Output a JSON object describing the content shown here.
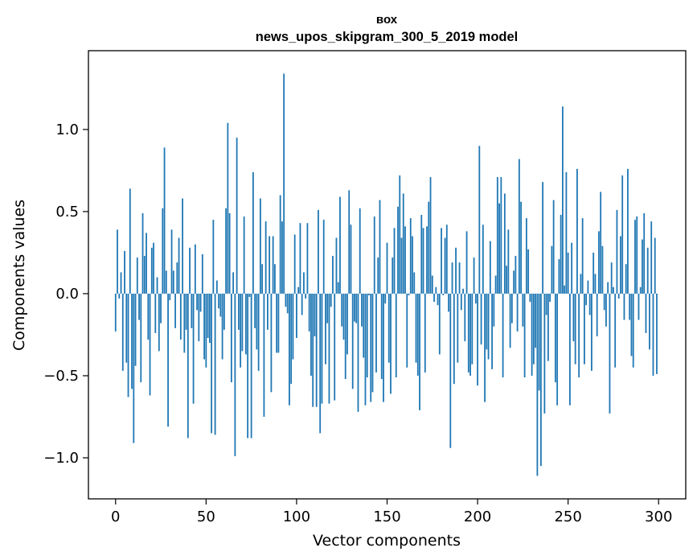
{
  "chart_data": {
    "type": "bar",
    "title_line1": "вох",
    "title_line2": "news_upos_skipgram_300_5_2019 model",
    "xlabel": "Vector components",
    "ylabel": "Components values",
    "xlim": [
      -15,
      315
    ],
    "ylim": [
      -1.25,
      1.48
    ],
    "xticks": [
      0,
      50,
      100,
      150,
      200,
      250,
      300
    ],
    "xtick_labels": [
      "0",
      "50",
      "100",
      "150",
      "200",
      "250",
      "300"
    ],
    "yticks": [
      -1.0,
      -0.5,
      0.0,
      0.5,
      1.0
    ],
    "ytick_labels": [
      "−1.0",
      "−0.5",
      "0.0",
      "0.5",
      "1.0"
    ],
    "bar_color": "#1f77b4",
    "values": [
      -0.23,
      0.39,
      -0.03,
      0.13,
      -0.47,
      0.26,
      -0.42,
      -0.63,
      0.64,
      -0.58,
      -0.91,
      -0.44,
      0.22,
      -0.16,
      -0.54,
      0.49,
      0.23,
      0.37,
      -0.28,
      -0.62,
      0.28,
      0.31,
      -0.24,
      0.1,
      -0.35,
      -0.18,
      0.52,
      0.89,
      0.14,
      -0.81,
      -0.04,
      0.39,
      0.14,
      -0.21,
      0.19,
      0.34,
      -0.28,
      0.58,
      -0.36,
      -0.22,
      -0.88,
      0.28,
      -0.21,
      -0.67,
      0.3,
      -0.1,
      -0.29,
      -0.11,
      0.24,
      -0.4,
      -0.45,
      -0.27,
      -0.3,
      -0.85,
      0.45,
      -0.86,
      0.08,
      -0.09,
      -0.14,
      -0.4,
      -0.22,
      0.52,
      1.04,
      0.49,
      -0.54,
      0.13,
      -0.99,
      0.95,
      -0.22,
      -0.45,
      -0.35,
      0.47,
      -0.37,
      -0.88,
      -0.02,
      -0.88,
      0.74,
      -0.21,
      -0.34,
      -0.47,
      0.58,
      0.18,
      -0.75,
      0.44,
      -0.22,
      0.35,
      -0.6,
      0.35,
      0.18,
      -0.36,
      -0.36,
      0.6,
      0.44,
      1.34,
      -0.08,
      -0.12,
      -0.68,
      -0.55,
      -0.4,
      0.36,
      -0.27,
      0.04,
      0.43,
      -0.13,
      0.13,
      -0.03,
      0.43,
      -0.23,
      -0.5,
      -0.69,
      -0.26,
      -0.69,
      0.51,
      -0.85,
      -0.67,
      0.45,
      -0.43,
      -0.18,
      -0.67,
      -0.08,
      0.23,
      -0.65,
      0.34,
      0.07,
      0.59,
      -0.2,
      -0.28,
      -0.52,
      -0.37,
      0.63,
      0.42,
      -0.58,
      -0.17,
      -0.18,
      -0.72,
      0.52,
      -0.2,
      -0.39,
      -0.68,
      -0.51,
      -0.01,
      -0.66,
      -0.6,
      0.47,
      -0.48,
      0.22,
      0.57,
      -0.52,
      -0.66,
      -0.06,
      0.31,
      -0.42,
      -0.61,
      0.22,
      0.4,
      -0.51,
      0.53,
      0.72,
      0.34,
      0.61,
      0.41,
      -0.45,
      -0.01,
      0.46,
      0.35,
      0.13,
      -0.42,
      -0.5,
      -0.71,
      0.48,
      0.4,
      -0.48,
      0.41,
      0.56,
      0.71,
      0.11,
      -0.05,
      0.04,
      -0.07,
      -0.37,
      0.4,
      -0.01,
      0.34,
      0.42,
      -0.11,
      -0.94,
      0.19,
      -0.55,
      0.28,
      -0.42,
      0.19,
      -0.1,
      0.03,
      -0.29,
      0.38,
      -0.48,
      -0.5,
      -0.43,
      0.22,
      -0.06,
      -0.56,
      0.9,
      -0.31,
      0.42,
      -0.66,
      -0.34,
      -0.4,
      0.32,
      -0.46,
      -0.2,
      0.11,
      0.71,
      0.55,
      0.71,
      -0.51,
      0.61,
      0.17,
      0.39,
      -0.33,
      -0.18,
      0.14,
      0.23,
      -0.23,
      0.82,
      0.56,
      -0.2,
      -0.51,
      0.46,
      0.27,
      -0.05,
      -0.5,
      -0.43,
      -0.33,
      -1.11,
      -0.59,
      -1.05,
      0.68,
      -0.73,
      -0.13,
      -0.41,
      -0.05,
      0.29,
      0.57,
      -0.54,
      -0.68,
      0.21,
      0.48,
      1.14,
      0.05,
      0.74,
      0.25,
      -0.68,
      0.31,
      -0.29,
      -0.43,
      0.76,
      -0.51,
      0.12,
      0.46,
      -0.43,
      -0.07,
      0.08,
      -0.13,
      -0.47,
      0.25,
      0.12,
      -0.26,
      0.38,
      0.62,
      0.29,
      -0.1,
      -0.2,
      0.07,
      -0.73,
      0.19,
      0.04,
      -0.45,
      0.51,
      -0.03,
      0.35,
      0.72,
      -0.16,
      0.18,
      0.76,
      -0.16,
      -0.38,
      -0.45,
      0.45,
      0.47,
      -0.16,
      0.04,
      0.33,
      0.49,
      -0.24,
      0.28,
      -0.34,
      0.44,
      -0.5,
      0.34,
      -0.49
    ]
  }
}
